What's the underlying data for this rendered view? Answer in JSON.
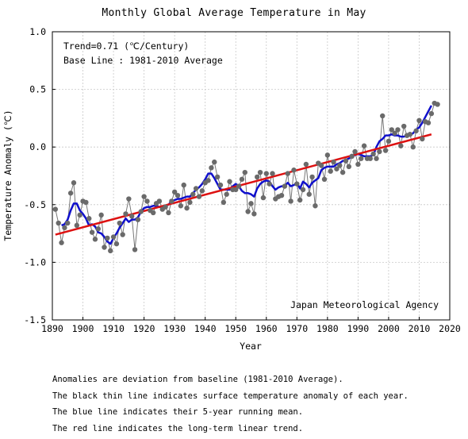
{
  "chart_data": {
    "type": "line",
    "title": "Monthly Global Average Temperature in May",
    "xlabel": "Year",
    "ylabel": "Temperature Anomaly (℃)",
    "xlim": [
      1890,
      2020
    ],
    "ylim": [
      -1.5,
      1.0
    ],
    "x_ticks": [
      1890,
      1900,
      1910,
      1920,
      1930,
      1940,
      1950,
      1960,
      1970,
      1980,
      1990,
      2000,
      2010,
      2020
    ],
    "x_tick_labels": [
      "1890",
      "1900",
      "1910",
      "1920",
      "1930",
      "1940",
      "1950",
      "1960",
      "1970",
      "1980",
      "1990",
      "2000",
      "2010",
      "2020"
    ],
    "y_ticks": [
      -1.5,
      -1.0,
      -0.5,
      0.0,
      0.5,
      1.0
    ],
    "y_tick_labels": [
      "-1.5",
      "-1.0",
      "-0.5",
      "0.0",
      "0.5",
      "1.0"
    ],
    "grid": true,
    "annotations": {
      "trend": "Trend=0.71 (℃/Century)",
      "baseline": "Base Line : 1981-2010 Average",
      "agency": "Japan Meteorological Agency"
    },
    "series": [
      {
        "type": "line",
        "color": "#777777",
        "marker_color": "#6a6a6a",
        "x": [
          1891,
          1892,
          1893,
          1894,
          1895,
          1896,
          1897,
          1898,
          1899,
          1900,
          1901,
          1902,
          1903,
          1904,
          1905,
          1906,
          1907,
          1908,
          1909,
          1910,
          1911,
          1912,
          1913,
          1914,
          1915,
          1916,
          1917,
          1918,
          1919,
          1920,
          1921,
          1922,
          1923,
          1924,
          1925,
          1926,
          1927,
          1928,
          1929,
          1930,
          1931,
          1932,
          1933,
          1934,
          1935,
          1936,
          1937,
          1938,
          1939,
          1940,
          1941,
          1942,
          1943,
          1944,
          1945,
          1946,
          1947,
          1948,
          1949,
          1950,
          1951,
          1952,
          1953,
          1954,
          1955,
          1956,
          1957,
          1958,
          1959,
          1960,
          1961,
          1962,
          1963,
          1964,
          1965,
          1966,
          1967,
          1968,
          1969,
          1970,
          1971,
          1972,
          1973,
          1974,
          1975,
          1976,
          1977,
          1978,
          1979,
          1980,
          1981,
          1982,
          1983,
          1984,
          1985,
          1986,
          1987,
          1988,
          1989,
          1990,
          1991,
          1992,
          1993,
          1994,
          1995,
          1996,
          1997,
          1998,
          1999,
          2000,
          2001,
          2002,
          2003,
          2004,
          2005,
          2006,
          2007,
          2008,
          2009,
          2010,
          2011,
          2012,
          2013,
          2014,
          2015,
          2016
        ],
        "y": [
          -0.54,
          -0.66,
          -0.83,
          -0.7,
          -0.66,
          -0.4,
          -0.31,
          -0.68,
          -0.59,
          -0.47,
          -0.48,
          -0.62,
          -0.74,
          -0.8,
          -0.71,
          -0.59,
          -0.87,
          -0.79,
          -0.9,
          -0.78,
          -0.84,
          -0.66,
          -0.76,
          -0.58,
          -0.45,
          -0.6,
          -0.89,
          -0.63,
          -0.56,
          -0.43,
          -0.47,
          -0.55,
          -0.57,
          -0.49,
          -0.47,
          -0.54,
          -0.52,
          -0.57,
          -0.47,
          -0.39,
          -0.42,
          -0.51,
          -0.33,
          -0.53,
          -0.48,
          -0.41,
          -0.36,
          -0.43,
          -0.38,
          -0.31,
          -0.29,
          -0.18,
          -0.13,
          -0.26,
          -0.33,
          -0.48,
          -0.41,
          -0.3,
          -0.37,
          -0.37,
          -0.34,
          -0.28,
          -0.22,
          -0.56,
          -0.49,
          -0.58,
          -0.26,
          -0.22,
          -0.44,
          -0.23,
          -0.32,
          -0.23,
          -0.45,
          -0.43,
          -0.42,
          -0.34,
          -0.23,
          -0.47,
          -0.2,
          -0.32,
          -0.46,
          -0.37,
          -0.15,
          -0.41,
          -0.26,
          -0.51,
          -0.14,
          -0.16,
          -0.28,
          -0.07,
          -0.21,
          -0.13,
          -0.19,
          -0.16,
          -0.22,
          -0.12,
          -0.17,
          -0.08,
          -0.04,
          -0.15,
          -0.1,
          0.01,
          -0.1,
          -0.1,
          -0.06,
          -0.1,
          -0.04,
          0.27,
          -0.03,
          0.05,
          0.15,
          0.12,
          0.15,
          0.01,
          0.18,
          0.1,
          0.11,
          0.0,
          0.14,
          0.23,
          0.07,
          0.22,
          0.21,
          0.29,
          0.38,
          0.37
        ]
      },
      {
        "type": "line",
        "color": "#1010cc",
        "x": [
          1893,
          1894,
          1895,
          1896,
          1897,
          1898,
          1899,
          1900,
          1901,
          1902,
          1903,
          1904,
          1905,
          1906,
          1907,
          1908,
          1909,
          1910,
          1911,
          1912,
          1913,
          1914,
          1915,
          1916,
          1917,
          1918,
          1919,
          1920,
          1921,
          1922,
          1923,
          1924,
          1925,
          1926,
          1927,
          1928,
          1929,
          1930,
          1931,
          1932,
          1933,
          1934,
          1935,
          1936,
          1937,
          1938,
          1939,
          1940,
          1941,
          1942,
          1943,
          1944,
          1945,
          1946,
          1947,
          1948,
          1949,
          1950,
          1951,
          1952,
          1953,
          1954,
          1955,
          1956,
          1957,
          1958,
          1959,
          1960,
          1961,
          1962,
          1963,
          1964,
          1965,
          1966,
          1967,
          1968,
          1969,
          1970,
          1971,
          1972,
          1973,
          1974,
          1975,
          1976,
          1977,
          1978,
          1979,
          1980,
          1981,
          1982,
          1983,
          1984,
          1985,
          1986,
          1987,
          1988,
          1989,
          1990,
          1991,
          1992,
          1993,
          1994,
          1995,
          1996,
          1997,
          1998,
          1999,
          2000,
          2001,
          2002,
          2003,
          2004,
          2005,
          2006,
          2007,
          2008,
          2009,
          2010,
          2011,
          2012,
          2013,
          2014
        ],
        "y": [
          -0.68,
          -0.67,
          -0.63,
          -0.55,
          -0.49,
          -0.49,
          -0.55,
          -0.58,
          -0.62,
          -0.68,
          -0.67,
          -0.69,
          -0.74,
          -0.75,
          -0.78,
          -0.82,
          -0.84,
          -0.79,
          -0.75,
          -0.7,
          -0.66,
          -0.62,
          -0.65,
          -0.63,
          -0.63,
          -0.61,
          -0.56,
          -0.53,
          -0.52,
          -0.52,
          -0.51,
          -0.51,
          -0.52,
          -0.52,
          -0.51,
          -0.5,
          -0.47,
          -0.46,
          -0.45,
          -0.45,
          -0.44,
          -0.43,
          -0.43,
          -0.4,
          -0.37,
          -0.35,
          -0.32,
          -0.28,
          -0.23,
          -0.23,
          -0.27,
          -0.32,
          -0.37,
          -0.37,
          -0.37,
          -0.37,
          -0.34,
          -0.32,
          -0.34,
          -0.38,
          -0.4,
          -0.4,
          -0.41,
          -0.43,
          -0.36,
          -0.32,
          -0.3,
          -0.29,
          -0.3,
          -0.34,
          -0.37,
          -0.35,
          -0.34,
          -0.34,
          -0.31,
          -0.34,
          -0.33,
          -0.31,
          -0.36,
          -0.3,
          -0.32,
          -0.35,
          -0.31,
          -0.29,
          -0.27,
          -0.2,
          -0.18,
          -0.17,
          -0.17,
          -0.17,
          -0.15,
          -0.14,
          -0.12,
          -0.11,
          -0.1,
          -0.08,
          -0.07,
          -0.06,
          -0.07,
          -0.08,
          -0.08,
          -0.08,
          -0.07,
          0.0,
          0.05,
          0.07,
          0.1,
          0.1,
          0.11,
          0.1,
          0.1,
          0.09,
          0.09,
          0.1,
          0.1,
          0.12,
          0.15,
          0.17,
          0.21,
          0.26,
          0.31,
          0.36
        ]
      },
      {
        "type": "line",
        "color": "#dd1111",
        "x": [
          1891,
          2014
        ],
        "y": [
          -0.76,
          0.11
        ]
      }
    ]
  },
  "notes": [
    "Anomalies are deviation from baseline (1981-2010 Average).",
    "The black thin line indicates surface temperature anomaly of each year.",
    "The blue line indicates their 5-year running mean.",
    "The red line indicates the long-term linear trend."
  ]
}
